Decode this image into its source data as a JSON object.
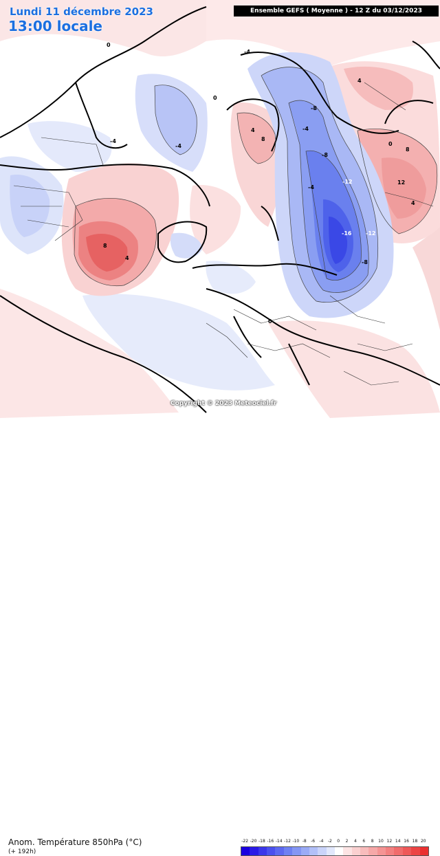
{
  "header": {
    "date": "Lundi 11 décembre 2023",
    "local_time": "13:00 locale",
    "run_info": "Ensemble GEFS ( Moyenne ) - 12 Z du 03/12/2023"
  },
  "footer": {
    "parameter_title": "Anom. Température 850hPa (°C)",
    "lead_time": "(+ 192h)",
    "copyright": "Copyright © 2023 Meteociel.fr"
  },
  "legend": {
    "ticks": [
      "-22",
      "-20",
      "-18",
      "-16",
      "-14",
      "-12",
      "-10",
      "-8",
      "-6",
      "-4",
      "-2",
      "0",
      "2",
      "4",
      "6",
      "8",
      "10",
      "12",
      "14",
      "16",
      "18",
      "20"
    ],
    "colors": [
      "#1a00e0",
      "#2a1ae6",
      "#3a36ea",
      "#4a50ee",
      "#5c68f0",
      "#6e80f2",
      "#8496f4",
      "#9aabf6",
      "#b2c0f8",
      "#cad4fa",
      "#e2e8fc",
      "#ffffff",
      "#fce4e4",
      "#fad0d0",
      "#f8bcbc",
      "#f6a8a8",
      "#f49494",
      "#f28080",
      "#f06c6c",
      "#ee5858",
      "#ec4444",
      "#ea3030"
    ]
  },
  "map": {
    "isolines": [
      {
        "label": "-16",
        "color": "#ffffff"
      },
      {
        "label": "-12",
        "color": "#ffffff"
      },
      {
        "label": "-12",
        "color": "#ffffff"
      },
      {
        "label": "-8",
        "color": "#000000"
      },
      {
        "label": "-8",
        "color": "#000000"
      },
      {
        "label": "-8",
        "color": "#000000"
      },
      {
        "label": "-4",
        "color": "#000000"
      },
      {
        "label": "-4",
        "color": "#000000"
      },
      {
        "label": "-4",
        "color": "#000000"
      },
      {
        "label": "-4",
        "color": "#000000"
      },
      {
        "label": "-4",
        "color": "#000000"
      },
      {
        "label": "0",
        "color": "#000000"
      },
      {
        "label": "0",
        "color": "#000000"
      },
      {
        "label": "0",
        "color": "#000000"
      },
      {
        "label": "0",
        "color": "#000000"
      },
      {
        "label": "4",
        "color": "#000000"
      },
      {
        "label": "4",
        "color": "#000000"
      },
      {
        "label": "4",
        "color": "#000000"
      },
      {
        "label": "4",
        "color": "#000000"
      },
      {
        "label": "8",
        "color": "#000000"
      },
      {
        "label": "8",
        "color": "#000000"
      },
      {
        "label": "8",
        "color": "#000000"
      },
      {
        "label": "12",
        "color": "#000000"
      }
    ]
  }
}
